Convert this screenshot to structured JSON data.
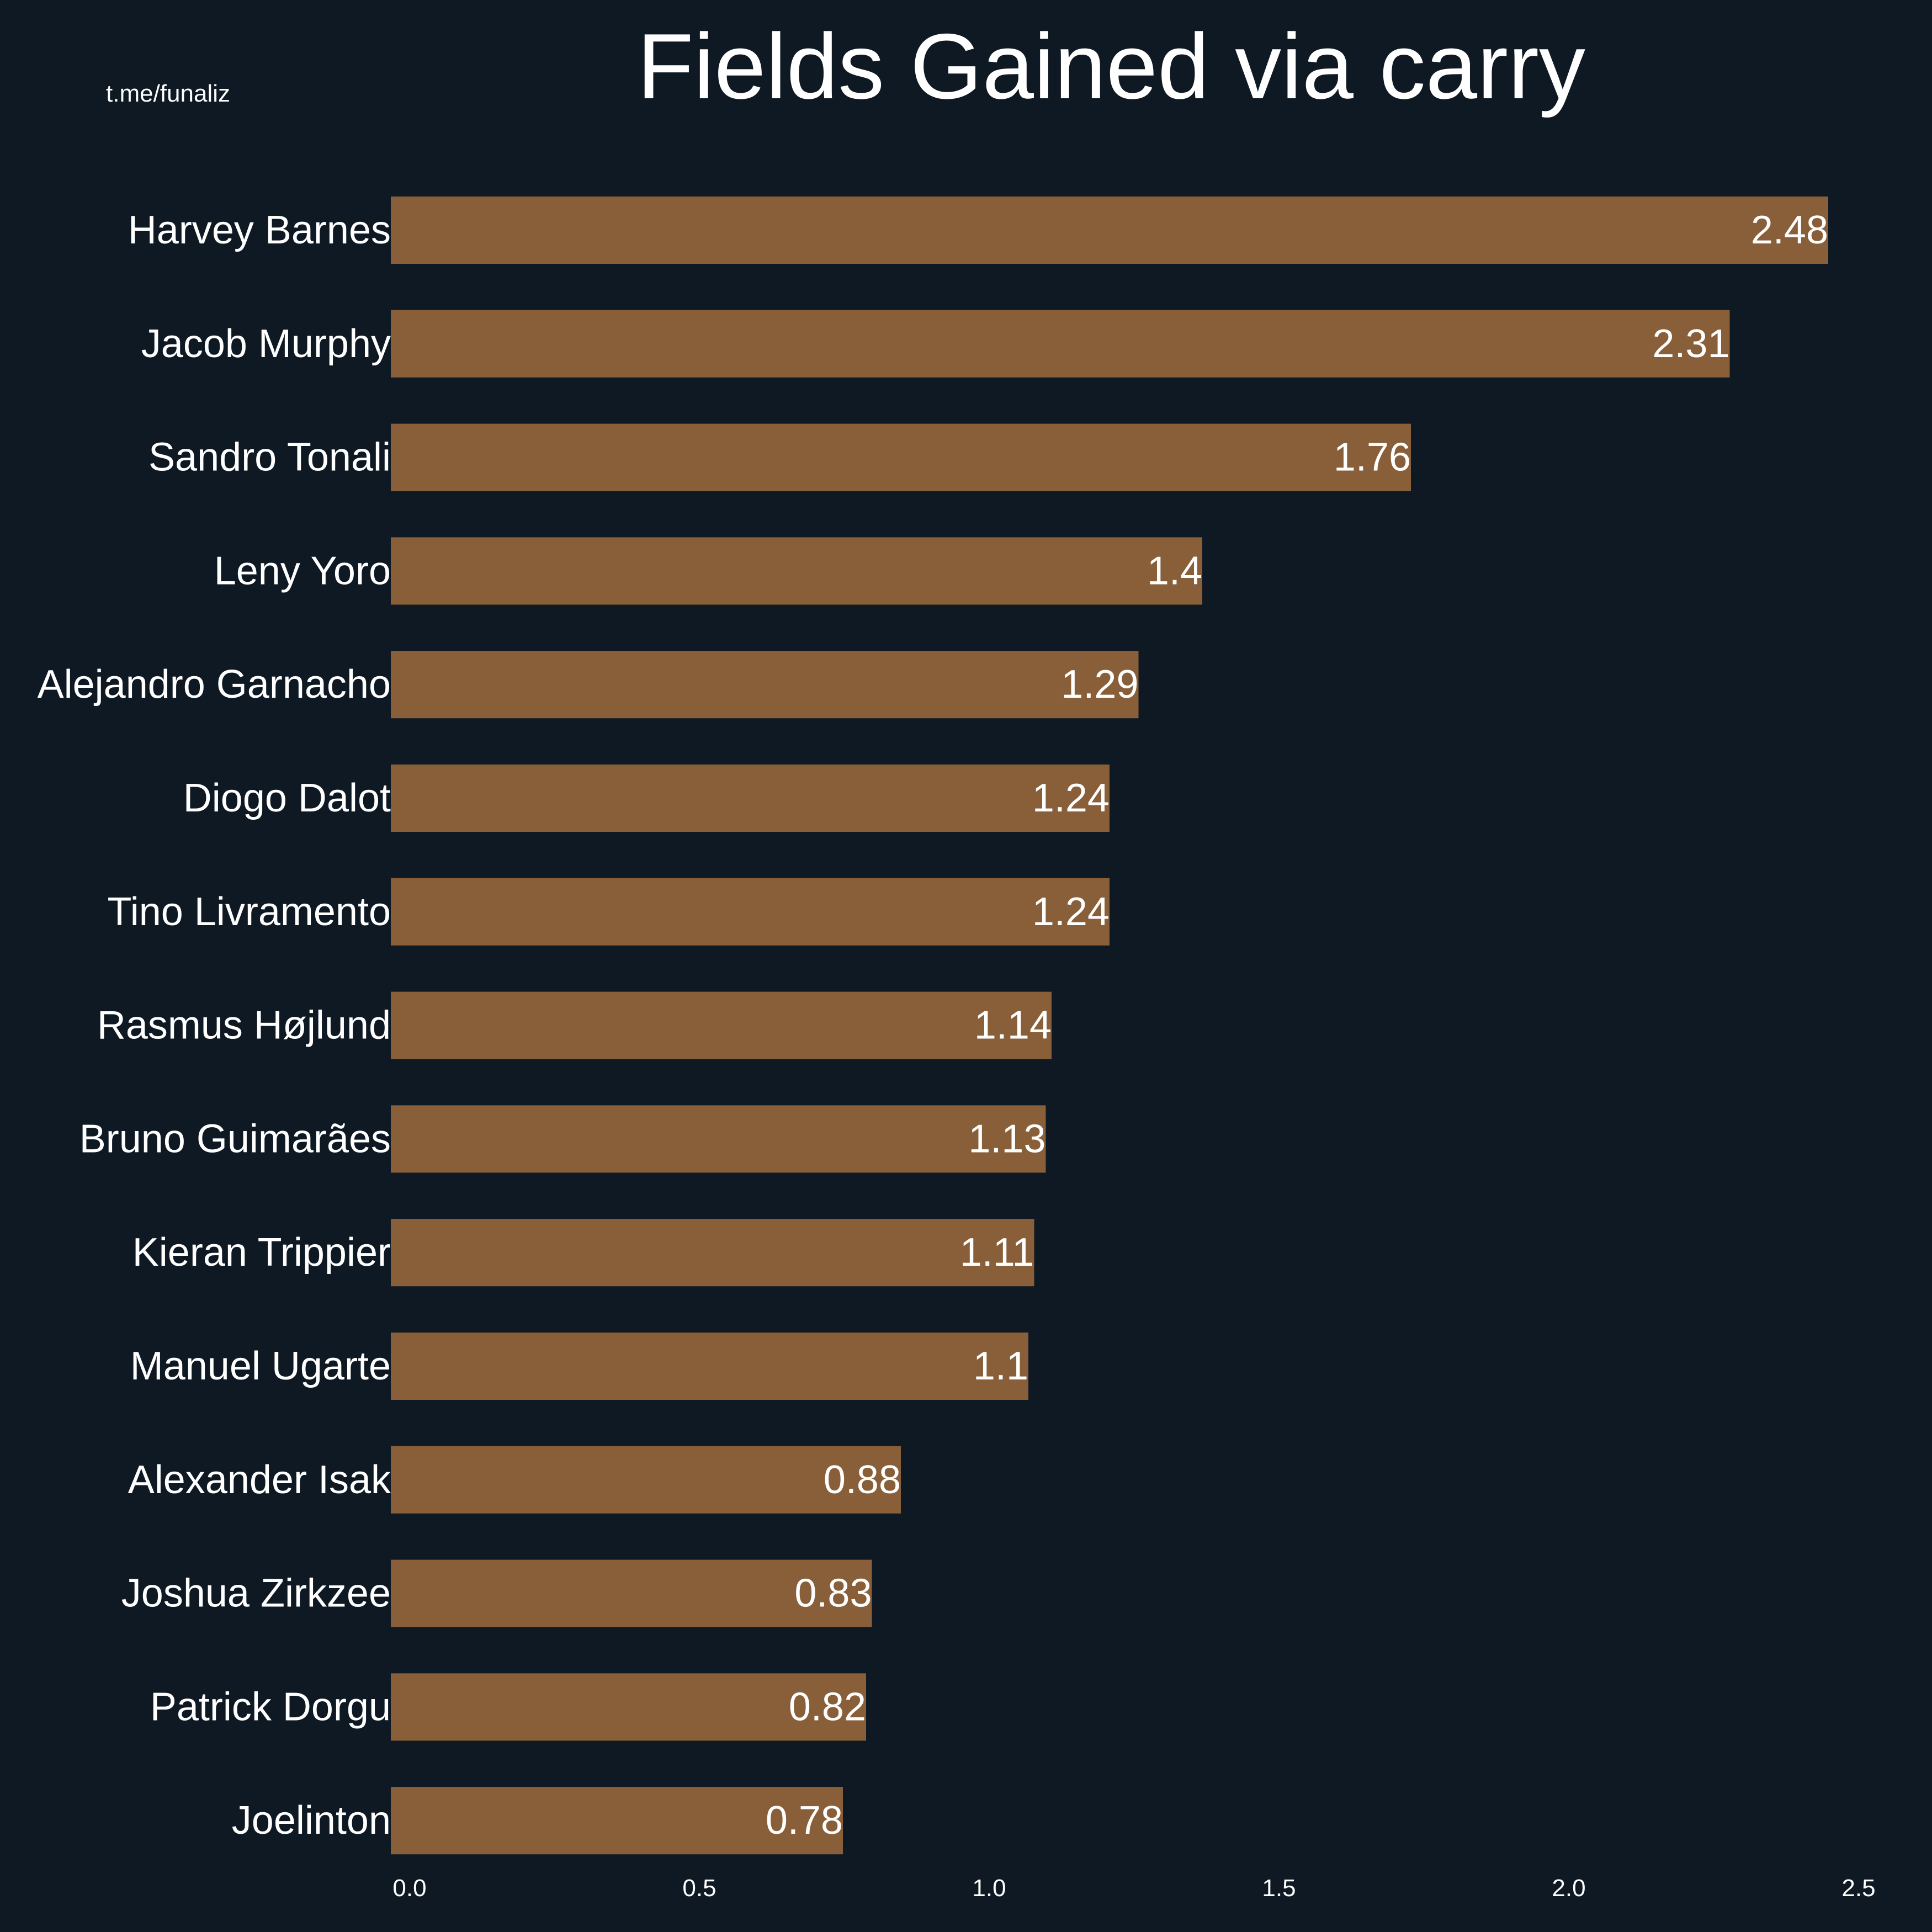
{
  "watermark": "t.me/funaliz",
  "colors": {
    "background": "#0f1923",
    "bar": "#895f39",
    "text": "#ffffff"
  },
  "chart_data": {
    "type": "bar",
    "orientation": "horizontal",
    "title": "Fields Gained via carry",
    "xlabel": "",
    "ylabel": "",
    "categories": [
      "Harvey Barnes",
      "Jacob Murphy",
      "Sandro Tonali",
      "Leny Yoro",
      "Alejandro Garnacho",
      "Diogo Dalot",
      "Tino Livramento",
      "Rasmus Højlund",
      "Bruno Guimarães",
      "Kieran Trippier",
      "Manuel Ugarte",
      "Alexander Isak",
      "Joshua Zirkzee",
      "Patrick Dorgu",
      "Joelinton"
    ],
    "values": [
      2.48,
      2.31,
      1.76,
      1.4,
      1.29,
      1.24,
      1.24,
      1.14,
      1.13,
      1.11,
      1.1,
      0.88,
      0.83,
      0.82,
      0.78
    ],
    "value_labels": [
      "2.48",
      "2.31",
      "1.76",
      "1.4",
      "1.29",
      "1.24",
      "1.24",
      "1.14",
      "1.13",
      "1.11",
      "1.1",
      "0.88",
      "0.83",
      "0.82",
      "0.78"
    ],
    "xlim": [
      0,
      2.5
    ],
    "xticks": [
      0.0,
      0.5,
      1.0,
      1.5,
      2.0,
      2.5
    ],
    "xtick_labels": [
      "0.0",
      "0.5",
      "1.0",
      "1.5",
      "2.0",
      "2.5"
    ],
    "grid": false,
    "legend": "none"
  }
}
